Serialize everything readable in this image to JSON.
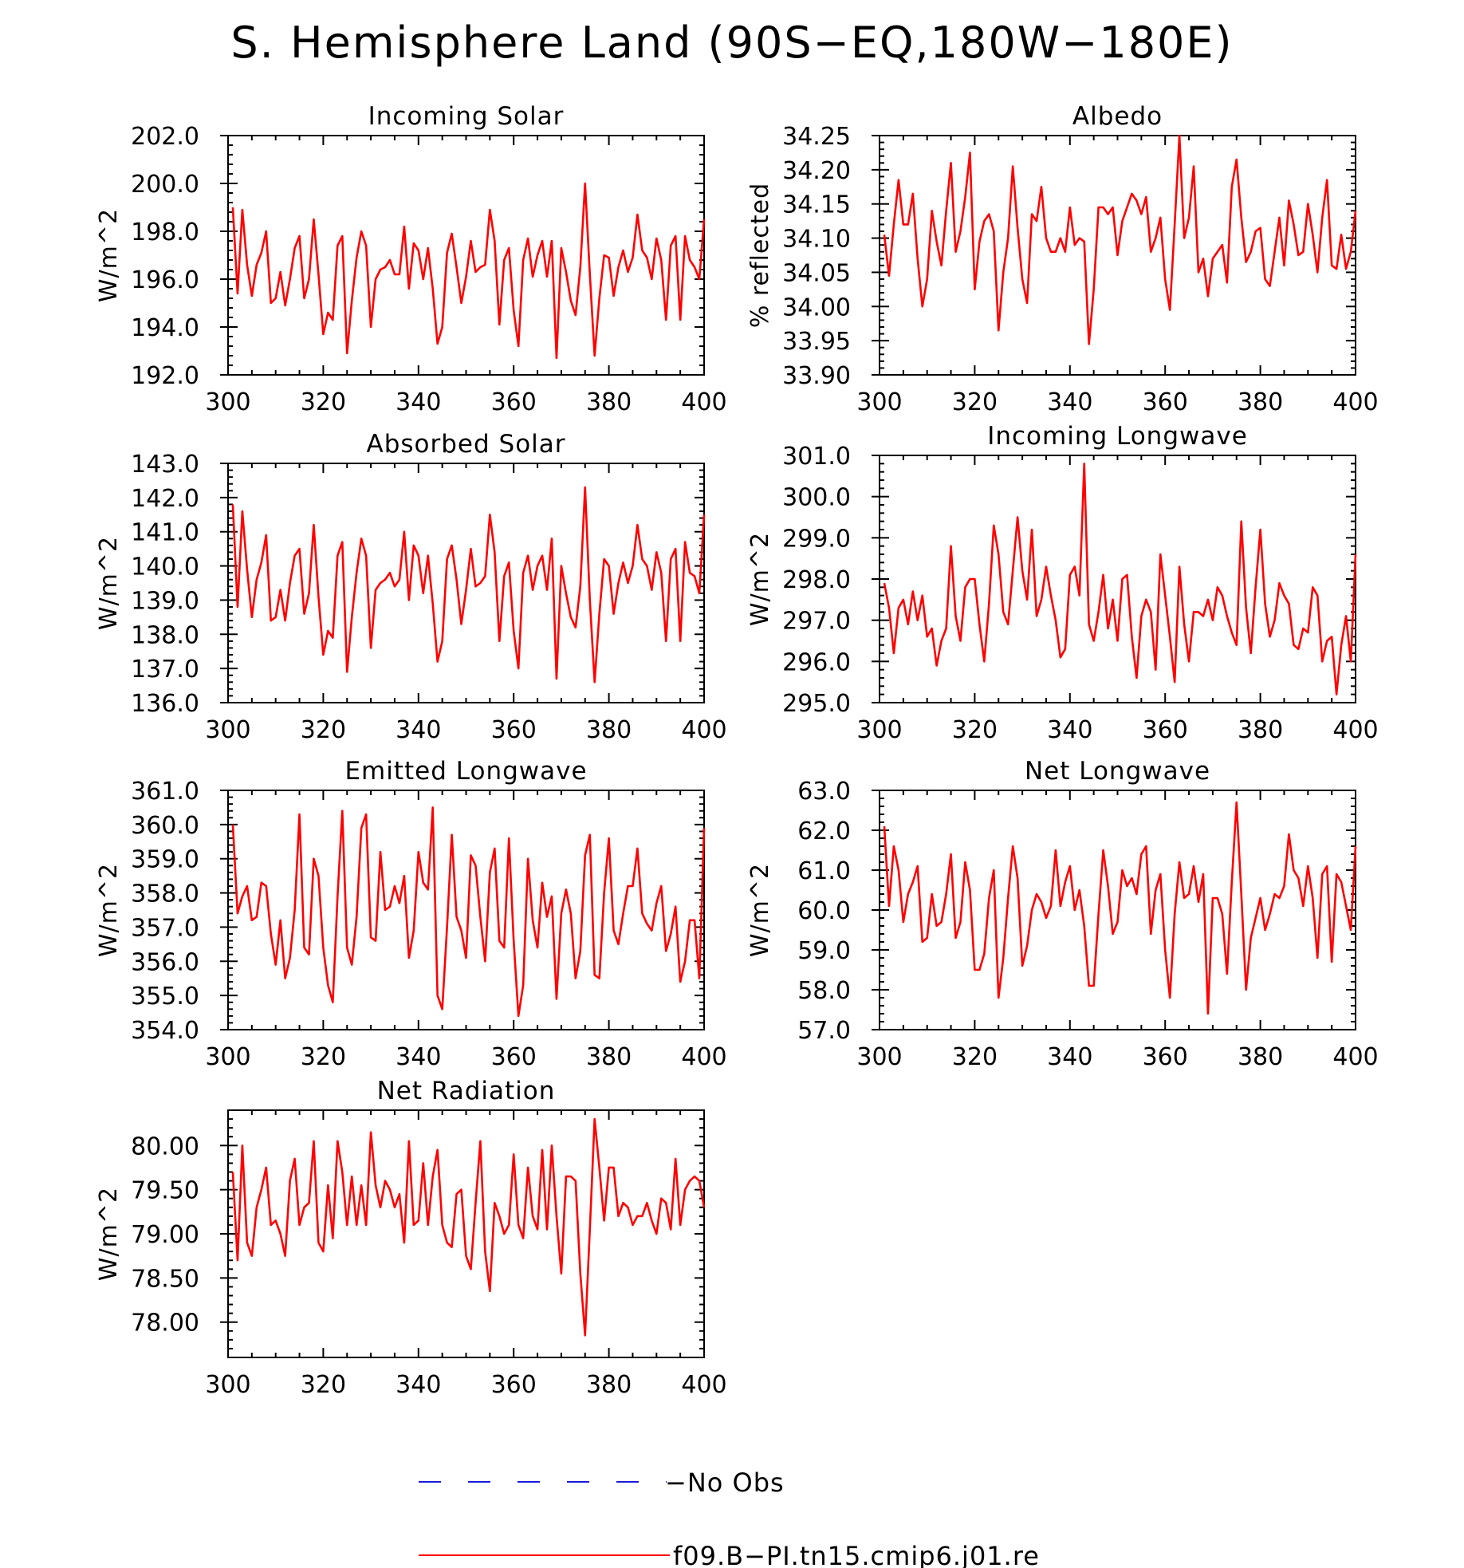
{
  "page": {
    "title": "S. Hemisphere Land (90S−EQ,180W−180E)"
  },
  "legend": [
    {
      "label": "−No Obs",
      "color": "#1a1ad8",
      "style": "dashed"
    },
    {
      "label": "f09.B−PI.tn15.cmip6.j01.re",
      "color": "#ff0000",
      "style": "solid"
    }
  ],
  "chart_data": [
    {
      "type": "line",
      "title": "Incoming Solar",
      "ylabel": "W/m^2",
      "xlim": [
        300,
        400
      ],
      "ylim": [
        192,
        202
      ],
      "yticks": [
        192,
        194,
        196,
        198,
        200,
        202
      ],
      "ydec": 1,
      "xticks": [
        300,
        320,
        340,
        360,
        380,
        400
      ],
      "series": [
        {
          "color": "#ff0000",
          "x_start": 301,
          "x_step": 1,
          "values": [
            199.0,
            195.4,
            198.9,
            196.6,
            195.3,
            196.6,
            197.1,
            198.0,
            195.0,
            195.2,
            196.3,
            194.9,
            196.0,
            197.3,
            197.8,
            195.2,
            196.0,
            198.5,
            196.2,
            193.7,
            194.6,
            194.3,
            197.4,
            197.8,
            192.9,
            195.1,
            196.9,
            198.0,
            197.4,
            194.0,
            196.0,
            196.4,
            196.5,
            196.8,
            196.2,
            196.2,
            198.2,
            195.6,
            197.5,
            197.2,
            196.0,
            197.3,
            195.6,
            193.3,
            194.0,
            197.1,
            197.9,
            196.5,
            195.0,
            196.1,
            197.6,
            196.3,
            196.5,
            196.6,
            198.9,
            197.6,
            194.1,
            196.8,
            197.3,
            194.7,
            193.2,
            196.8,
            197.7,
            196.1,
            197.0,
            197.6,
            196.1,
            197.6,
            192.7,
            197.3,
            196.3,
            195.1,
            194.5,
            196.5,
            200.0,
            196.2,
            192.8,
            195.2,
            197.0,
            196.9,
            195.3,
            196.5,
            197.2,
            196.3,
            196.9,
            198.7,
            197.2,
            196.9,
            196.0,
            197.7,
            196.8,
            194.3,
            197.4,
            197.8,
            194.3,
            197.8,
            196.8,
            196.5,
            196.0,
            198.5
          ]
        }
      ]
    },
    {
      "type": "line",
      "title": "Albedo",
      "ylabel": "% reflected",
      "xlim": [
        300,
        400
      ],
      "ylim": [
        33.9,
        34.25
      ],
      "yticks": [
        33.9,
        33.95,
        34.0,
        34.05,
        34.1,
        34.15,
        34.2,
        34.25
      ],
      "ydec": 2,
      "xticks": [
        300,
        320,
        340,
        360,
        380,
        400
      ],
      "series": [
        {
          "color": "#ff0000",
          "x_start": 301,
          "x_step": 1,
          "values": [
            34.105,
            34.045,
            34.12,
            34.185,
            34.12,
            34.12,
            34.165,
            34.07,
            34.0,
            34.04,
            34.14,
            34.095,
            34.06,
            34.14,
            34.21,
            34.08,
            34.11,
            34.16,
            34.225,
            34.025,
            34.095,
            34.125,
            34.135,
            34.11,
            33.965,
            34.05,
            34.1,
            34.205,
            34.115,
            34.04,
            34.005,
            34.135,
            34.125,
            34.175,
            34.1,
            34.08,
            34.08,
            34.1,
            34.08,
            34.145,
            34.09,
            34.1,
            34.095,
            33.945,
            34.025,
            34.145,
            34.145,
            34.135,
            34.145,
            34.075,
            34.125,
            34.145,
            34.165,
            34.155,
            34.135,
            34.16,
            34.08,
            34.1,
            34.13,
            34.04,
            33.995,
            34.12,
            34.25,
            34.1,
            34.13,
            34.205,
            34.05,
            34.07,
            34.015,
            34.07,
            34.08,
            34.09,
            34.035,
            34.175,
            34.215,
            34.13,
            34.065,
            34.08,
            34.11,
            34.115,
            34.04,
            34.03,
            34.08,
            34.13,
            34.06,
            34.155,
            34.12,
            34.075,
            34.08,
            34.15,
            34.105,
            34.05,
            34.13,
            34.185,
            34.06,
            34.055,
            34.105,
            34.055,
            34.08,
            34.14
          ]
        }
      ]
    },
    {
      "type": "line",
      "title": "Absorbed Solar",
      "ylabel": "W/m^2",
      "xlim": [
        300,
        400
      ],
      "ylim": [
        136,
        143
      ],
      "yticks": [
        136,
        137,
        138,
        139,
        140,
        141,
        142,
        143
      ],
      "ydec": 1,
      "xticks": [
        300,
        320,
        340,
        360,
        380,
        400
      ],
      "series": [
        {
          "color": "#ff0000",
          "x_start": 301,
          "x_step": 1,
          "values": [
            141.8,
            138.8,
            141.6,
            139.9,
            138.5,
            139.6,
            140.1,
            140.9,
            138.4,
            138.5,
            139.3,
            138.4,
            139.5,
            140.3,
            140.5,
            138.6,
            139.2,
            141.2,
            139.1,
            137.4,
            138.1,
            137.9,
            140.3,
            140.7,
            136.9,
            138.5,
            139.8,
            140.8,
            140.3,
            137.6,
            139.3,
            139.5,
            139.6,
            139.8,
            139.4,
            139.6,
            141.0,
            139.0,
            140.6,
            140.3,
            139.2,
            140.3,
            138.9,
            137.2,
            137.8,
            140.2,
            140.6,
            139.6,
            138.3,
            139.3,
            140.5,
            139.4,
            139.5,
            139.7,
            141.5,
            140.4,
            137.8,
            139.7,
            140.1,
            138.1,
            137.0,
            139.8,
            140.3,
            139.3,
            140.0,
            140.3,
            139.3,
            140.8,
            136.7,
            140.0,
            139.2,
            138.5,
            138.2,
            139.4,
            142.3,
            139.0,
            136.6,
            138.6,
            140.2,
            140.0,
            138.6,
            139.5,
            140.1,
            139.5,
            140.0,
            141.2,
            140.2,
            140.0,
            139.3,
            140.4,
            139.8,
            137.8,
            140.2,
            140.5,
            137.8,
            140.7,
            139.8,
            139.7,
            139.2,
            141.5
          ]
        }
      ]
    },
    {
      "type": "line",
      "title": "Incoming Longwave",
      "ylabel": "W/m^2",
      "xlim": [
        300,
        400
      ],
      "ylim": [
        295,
        301
      ],
      "yticks": [
        295,
        296,
        297,
        298,
        299,
        300,
        301
      ],
      "ydec": 1,
      "xticks": [
        300,
        320,
        340,
        360,
        380,
        400
      ],
      "series": [
        {
          "color": "#ff0000",
          "x_start": 301,
          "x_step": 1,
          "values": [
            297.9,
            297.3,
            296.2,
            297.3,
            297.5,
            296.9,
            297.7,
            297.0,
            297.6,
            296.6,
            296.8,
            295.9,
            296.5,
            296.8,
            298.8,
            297.1,
            296.5,
            297.8,
            298.0,
            298.0,
            296.9,
            296.0,
            297.4,
            299.3,
            298.6,
            297.2,
            296.9,
            298.2,
            299.5,
            298.2,
            297.5,
            299.2,
            297.1,
            297.5,
            298.3,
            297.6,
            297.0,
            296.1,
            296.3,
            298.1,
            298.3,
            297.6,
            300.8,
            296.9,
            296.5,
            297.2,
            298.1,
            296.8,
            297.5,
            296.5,
            298.0,
            298.1,
            296.6,
            295.6,
            297.1,
            297.5,
            297.2,
            295.8,
            298.6,
            297.6,
            296.6,
            295.5,
            298.3,
            296.9,
            296.0,
            297.2,
            297.2,
            297.1,
            297.5,
            297.0,
            297.8,
            297.6,
            297.1,
            296.7,
            296.4,
            299.4,
            297.3,
            296.2,
            297.8,
            299.2,
            297.4,
            296.6,
            297.0,
            297.9,
            297.6,
            297.4,
            296.4,
            296.3,
            296.8,
            296.7,
            297.8,
            297.6,
            296.0,
            296.5,
            296.6,
            295.2,
            296.4,
            297.1,
            296.0,
            298.6
          ]
        }
      ]
    },
    {
      "type": "line",
      "title": "Emitted Longwave",
      "ylabel": "W/m^2",
      "xlim": [
        300,
        400
      ],
      "ylim": [
        354,
        361
      ],
      "yticks": [
        354,
        355,
        356,
        357,
        358,
        359,
        360,
        361
      ],
      "ydec": 1,
      "xticks": [
        300,
        320,
        340,
        360,
        380,
        400
      ],
      "series": [
        {
          "color": "#ff0000",
          "x_start": 301,
          "x_step": 1,
          "values": [
            360.0,
            357.4,
            357.9,
            358.2,
            357.2,
            357.3,
            358.3,
            358.2,
            356.8,
            355.9,
            357.2,
            355.5,
            356.1,
            357.5,
            360.3,
            356.4,
            356.2,
            359.0,
            358.5,
            356.4,
            355.3,
            354.8,
            357.9,
            360.4,
            356.4,
            355.9,
            357.3,
            359.9,
            360.3,
            356.7,
            356.6,
            359.2,
            357.5,
            357.6,
            358.2,
            357.7,
            358.5,
            356.1,
            356.9,
            359.2,
            358.3,
            358.1,
            360.5,
            355.0,
            354.6,
            357.0,
            359.7,
            357.3,
            356.9,
            356.1,
            359.1,
            358.8,
            357.3,
            356.0,
            358.6,
            359.3,
            356.6,
            356.4,
            359.6,
            356.6,
            354.4,
            355.3,
            359.0,
            357.2,
            356.4,
            358.3,
            357.3,
            357.9,
            354.9,
            357.4,
            358.1,
            357.4,
            355.5,
            356.3,
            359.1,
            359.7,
            355.6,
            355.5,
            358.0,
            359.6,
            356.9,
            356.5,
            357.4,
            358.2,
            358.2,
            359.3,
            357.4,
            357.1,
            356.9,
            357.7,
            358.2,
            356.3,
            356.8,
            357.6,
            355.4,
            356.0,
            357.2,
            357.2,
            355.5,
            359.9
          ]
        }
      ]
    },
    {
      "type": "line",
      "title": "Net Longwave",
      "ylabel": "W/m^2",
      "xlim": [
        300,
        400
      ],
      "ylim": [
        57,
        63
      ],
      "yticks": [
        57,
        58,
        59,
        60,
        61,
        62,
        63
      ],
      "ydec": 1,
      "xticks": [
        300,
        320,
        340,
        360,
        380,
        400
      ],
      "series": [
        {
          "color": "#ff0000",
          "x_start": 301,
          "x_step": 1,
          "values": [
            62.1,
            60.1,
            61.6,
            61.0,
            59.7,
            60.4,
            60.7,
            61.1,
            59.2,
            59.3,
            60.4,
            59.6,
            59.7,
            60.4,
            61.4,
            59.3,
            59.7,
            61.2,
            60.5,
            58.5,
            58.5,
            58.9,
            60.3,
            61.0,
            57.8,
            58.8,
            60.3,
            61.6,
            60.8,
            58.6,
            59.1,
            60.0,
            60.4,
            60.2,
            59.8,
            60.1,
            61.5,
            60.1,
            60.7,
            61.1,
            60.0,
            60.5,
            59.6,
            58.1,
            58.1,
            59.9,
            61.5,
            60.6,
            59.4,
            59.7,
            61.0,
            60.6,
            60.8,
            60.4,
            61.4,
            61.6,
            59.4,
            60.5,
            60.9,
            59.0,
            57.8,
            59.9,
            61.2,
            60.3,
            60.4,
            61.1,
            60.2,
            60.9,
            57.4,
            60.3,
            60.3,
            59.9,
            58.4,
            60.7,
            62.7,
            60.4,
            58.0,
            59.3,
            59.8,
            60.3,
            59.5,
            59.9,
            60.4,
            60.3,
            60.6,
            61.9,
            61.0,
            60.8,
            60.1,
            61.1,
            60.3,
            58.8,
            60.9,
            61.1,
            58.7,
            60.9,
            60.7,
            60.1,
            59.5,
            61.6
          ]
        }
      ]
    },
    {
      "type": "line",
      "title": "Net Radiation",
      "ylabel": "W/m^2",
      "xlim": [
        300,
        400
      ],
      "ylim": [
        77.6,
        80.4
      ],
      "yticks": [
        78.0,
        78.5,
        79.0,
        79.5,
        80.0
      ],
      "ydec": 2,
      "xticks": [
        300,
        320,
        340,
        360,
        380,
        400
      ],
      "series": [
        {
          "color": "#ff0000",
          "x_start": 301,
          "x_step": 1,
          "values": [
            79.7,
            78.7,
            80.0,
            78.9,
            78.75,
            79.3,
            79.5,
            79.75,
            79.1,
            79.15,
            79.0,
            78.75,
            79.6,
            79.85,
            79.1,
            79.3,
            79.35,
            80.05,
            78.9,
            78.8,
            79.55,
            78.95,
            80.05,
            79.7,
            79.1,
            79.65,
            79.1,
            79.55,
            79.1,
            80.15,
            79.55,
            79.3,
            79.6,
            79.5,
            79.3,
            79.45,
            78.9,
            80.05,
            79.1,
            79.15,
            79.8,
            79.1,
            79.65,
            79.95,
            79.1,
            78.9,
            78.85,
            79.45,
            79.5,
            78.75,
            78.6,
            79.35,
            80.05,
            78.8,
            78.35,
            79.35,
            79.2,
            79.0,
            79.1,
            79.9,
            79.1,
            78.95,
            79.75,
            79.2,
            79.05,
            79.95,
            79.05,
            80.0,
            79.2,
            78.55,
            79.65,
            79.65,
            79.6,
            78.55,
            77.85,
            79.05,
            80.3,
            79.75,
            79.15,
            79.75,
            79.75,
            79.2,
            79.35,
            79.3,
            79.1,
            79.2,
            79.2,
            79.35,
            79.15,
            79.0,
            79.4,
            79.35,
            79.05,
            79.85,
            79.1,
            79.5,
            79.6,
            79.65,
            79.6,
            79.3
          ]
        }
      ]
    }
  ]
}
